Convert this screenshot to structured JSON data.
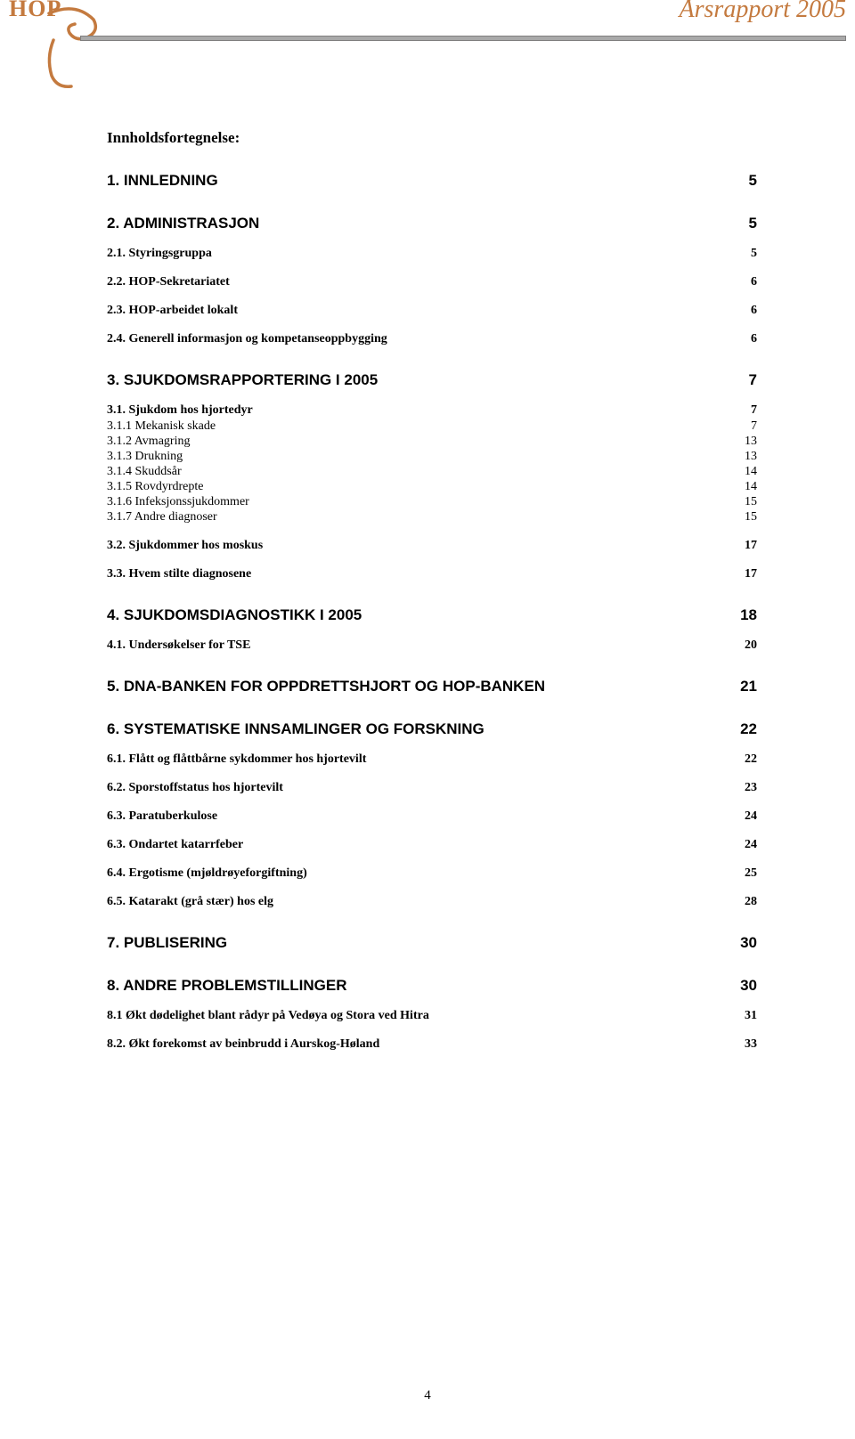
{
  "header": {
    "logo_text": "HOP",
    "report_title": "Årsrapport 2005"
  },
  "colors": {
    "accent": "#c47a3f",
    "divider_fill": "#a9a9a9",
    "divider_border": "#807f7f",
    "text": "#000000",
    "background": "#ffffff"
  },
  "typography": {
    "body_family": "Times New Roman",
    "heading_family": "Arial",
    "logo_family": "Georgia",
    "toc_title_size_pt": 13,
    "l1_size_pt": 13,
    "l2_size_pt": 11,
    "l3_size_pt": 11
  },
  "toc": {
    "title": "Innholdsfortegnelse:",
    "entries": [
      {
        "level": 1,
        "label": "1. INNLEDNING",
        "page": "5"
      },
      {
        "level": 1,
        "label": "2. ADMINISTRASJON",
        "page": "5"
      },
      {
        "level": 2,
        "label": "2.1. Styringsgruppa",
        "page": "5"
      },
      {
        "level": 2,
        "label": "2.2. HOP-Sekretariatet",
        "page": "6"
      },
      {
        "level": 2,
        "label": "2.3. HOP-arbeidet lokalt",
        "page": "6"
      },
      {
        "level": 2,
        "label": "2.4. Generell informasjon og kompetanseoppbygging",
        "page": "6"
      },
      {
        "level": 1,
        "label": "3. SJUKDOMSRAPPORTERING I 2005",
        "page": "7"
      },
      {
        "level": 2,
        "label": "3.1. Sjukdom hos hjortedyr",
        "page": "7"
      },
      {
        "level": 3,
        "label": "3.1.1 Mekanisk skade",
        "page": "7"
      },
      {
        "level": 3,
        "label": "3.1.2 Avmagring",
        "page": "13"
      },
      {
        "level": 3,
        "label": "3.1.3 Drukning",
        "page": "13"
      },
      {
        "level": 3,
        "label": "3.1.4 Skuddsår",
        "page": "14"
      },
      {
        "level": 3,
        "label": "3.1.5 Rovdyrdrepte",
        "page": "14"
      },
      {
        "level": 3,
        "label": "3.1.6 Infeksjonssjukdommer",
        "page": "15"
      },
      {
        "level": 3,
        "label": "3.1.7 Andre diagnoser",
        "page": "15"
      },
      {
        "level": 2,
        "label": "3.2. Sjukdommer hos moskus",
        "page": "17"
      },
      {
        "level": 2,
        "label": "3.3. Hvem stilte diagnosene",
        "page": "17"
      },
      {
        "level": 1,
        "label": "4. SJUKDOMSDIAGNOSTIKK I 2005",
        "page": "18"
      },
      {
        "level": 2,
        "label": "4.1. Undersøkelser for TSE",
        "page": "20"
      },
      {
        "level": 1,
        "label": "5. DNA-BANKEN FOR OPPDRETTSHJORT OG HOP-BANKEN",
        "page": "21"
      },
      {
        "level": 1,
        "label": "6. SYSTEMATISKE INNSAMLINGER OG FORSKNING",
        "page": "22"
      },
      {
        "level": 2,
        "label": "6.1. Flått og flåttbårne sykdommer hos hjortevilt",
        "page": "22"
      },
      {
        "level": 2,
        "label": "6.2. Sporstoffstatus hos hjortevilt",
        "page": "23"
      },
      {
        "level": 2,
        "label": "6.3. Paratuberkulose",
        "page": "24"
      },
      {
        "level": 2,
        "label": "6.3. Ondartet katarrfeber",
        "page": "24"
      },
      {
        "level": 2,
        "label": "6.4. Ergotisme (mjøldrøyeforgiftning)",
        "page": "25"
      },
      {
        "level": 2,
        "label": "6.5. Katarakt (grå stær) hos elg",
        "page": "28"
      },
      {
        "level": 1,
        "label": "7. PUBLISERING",
        "page": "30"
      },
      {
        "level": 1,
        "label": "8. ANDRE PROBLEMSTILLINGER",
        "page": "30"
      },
      {
        "level": 2,
        "label": "8.1 Økt dødelighet blant rådyr på Vedøya og Stora ved Hitra",
        "page": "31"
      },
      {
        "level": 2,
        "label": "8.2. Økt forekomst av beinbrudd i Aurskog-Høland",
        "page": "33"
      }
    ]
  },
  "page_number": "4"
}
